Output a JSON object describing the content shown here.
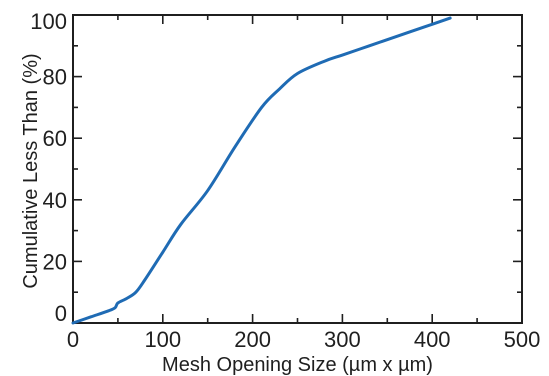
{
  "chart_data": {
    "type": "line",
    "title": "",
    "xlabel": "Mesh Opening Size (µm x µm)",
    "ylabel": "Cumulative Less Than (%)",
    "xlim": [
      0,
      500
    ],
    "ylim": [
      0,
      100
    ],
    "x_ticks": [
      0,
      100,
      200,
      300,
      400,
      500
    ],
    "y_ticks": [
      0,
      20,
      40,
      60,
      80,
      100
    ],
    "x_tick_labels": [
      "0",
      "100",
      "200",
      "300",
      "400",
      "500"
    ],
    "y_tick_labels": [
      "0",
      "20",
      "40",
      "60",
      "80",
      "100"
    ],
    "minor_x_ticks": [
      50,
      150,
      250,
      350,
      450
    ],
    "minor_y_ticks": [
      10,
      30,
      50,
      70,
      90
    ],
    "grid": false,
    "series": [
      {
        "color": "#1f6bb4",
        "x": [
          0,
          20,
          40,
          47,
          50,
          60,
          70,
          80,
          100,
          120,
          150,
          180,
          210,
          230,
          250,
          280,
          300,
          330,
          360,
          390,
          420
        ],
        "y": [
          0,
          2,
          4,
          5,
          6.5,
          8,
          10,
          14,
          23,
          32,
          43,
          57,
          70,
          76,
          81,
          85,
          87,
          90,
          93,
          96,
          99
        ]
      }
    ]
  }
}
